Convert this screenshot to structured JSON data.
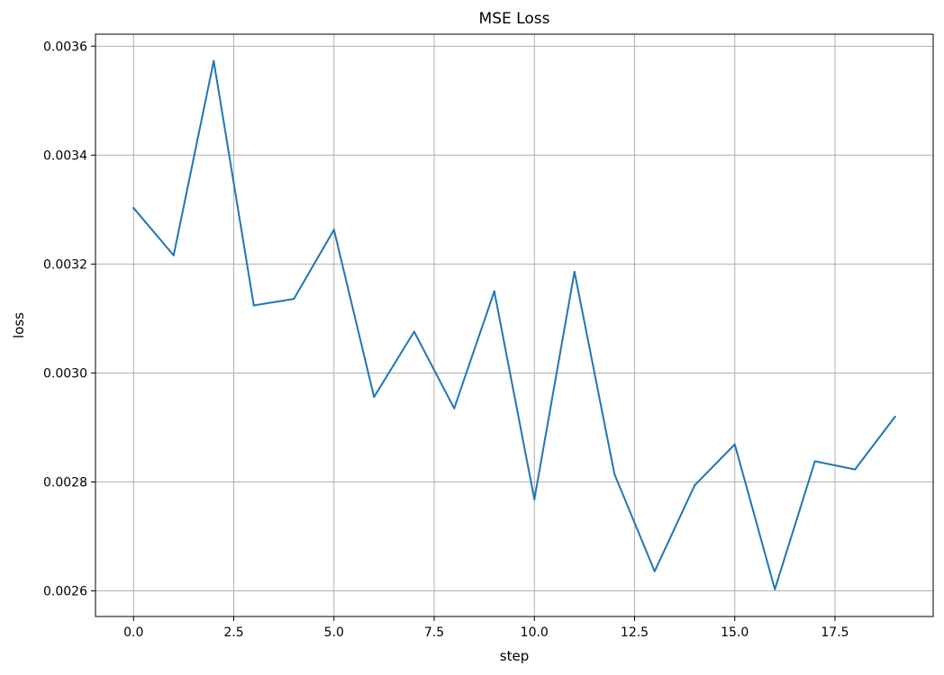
{
  "chart_data": {
    "type": "line",
    "title": "MSE Loss",
    "xlabel": "step",
    "ylabel": "loss",
    "xlim": [
      -0.95,
      19.95
    ],
    "ylim": [
      0.002553,
      0.003622
    ],
    "grid": true,
    "xticks": [
      0,
      2.5,
      5,
      7.5,
      10,
      12.5,
      15,
      17.5
    ],
    "xtick_labels": [
      "0.0",
      "2.5",
      "5.0",
      "7.5",
      "10.0",
      "12.5",
      "15.0",
      "17.5"
    ],
    "yticks": [
      0.0026,
      0.0028,
      0.003,
      0.0032,
      0.0034,
      0.0036
    ],
    "ytick_labels": [
      "0.0026",
      "0.0028",
      "0.0030",
      "0.0032",
      "0.0034",
      "0.0036"
    ],
    "series": [
      {
        "color": "#1f77b4",
        "x": [
          0,
          1,
          2,
          3,
          4,
          5,
          6,
          7,
          8,
          9,
          10,
          11,
          12,
          13,
          14,
          15,
          16,
          17,
          18,
          19
        ],
        "y": [
          0.003303,
          0.003216,
          0.003573,
          0.003124,
          0.003136,
          0.003263,
          0.002956,
          0.003076,
          0.002935,
          0.00315,
          0.002768,
          0.003186,
          0.002814,
          0.002636,
          0.002794,
          0.002869,
          0.002603,
          0.002838,
          0.002823,
          0.00292
        ]
      }
    ]
  }
}
